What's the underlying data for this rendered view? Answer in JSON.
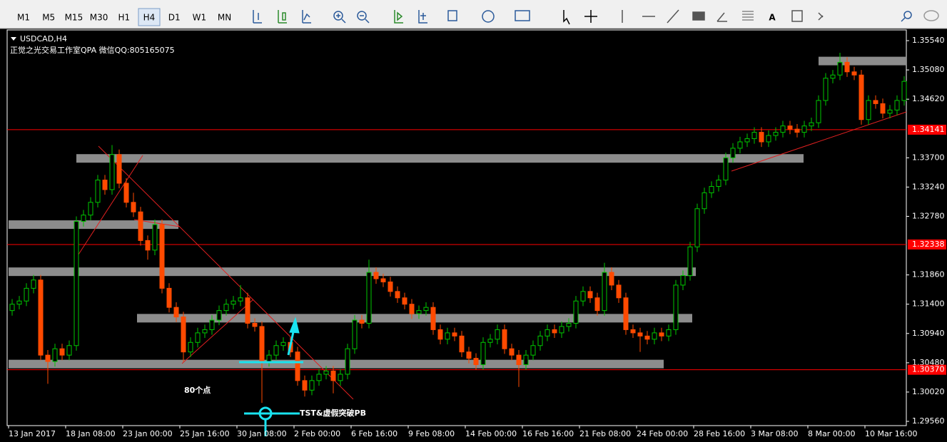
{
  "toolbar": {
    "timeframes": [
      "M1",
      "M5",
      "M15",
      "M30",
      "H1",
      "H4",
      "D1",
      "W1",
      "MN"
    ],
    "active": "H4",
    "text_tool": "A"
  },
  "chart_data": {
    "type": "candlestick",
    "title": "USDCAD,H4",
    "subtitle": "正觉之光交易工作室QPA 微信QQ:805165075",
    "bull_color": "#00c800",
    "bear_color": "#ff4a00",
    "ylim": [
      1.29493,
      1.35708
    ],
    "yticks": [
      {
        "value": 1.2956,
        "label": "1.29560"
      },
      {
        "value": 1.3002,
        "label": "1.30020"
      },
      {
        "value": 1.3048,
        "label": "1.30480"
      },
      {
        "value": 1.3094,
        "label": "1.30940"
      },
      {
        "value": 1.314,
        "label": "1.31400"
      },
      {
        "value": 1.3186,
        "label": "1.31860"
      },
      {
        "value": 1.3278,
        "label": "1.32780"
      },
      {
        "value": 1.3324,
        "label": "1.33240"
      },
      {
        "value": 1.337,
        "label": "1.33700"
      },
      {
        "value": 1.3462,
        "label": "1.34620"
      },
      {
        "value": 1.3508,
        "label": "1.35080"
      },
      {
        "value": 1.3554,
        "label": "1.35540"
      }
    ],
    "hlines": [
      1.34141,
      1.32338,
      {
        "value": 1.3037,
        "label": "1.30370"
      }
    ],
    "hline_color": "#ff0000",
    "zones": [
      1.3369,
      1.3265,
      1.3191,
      1.3118,
      1.3046,
      1.3522
    ],
    "zone_color": "#8c8c8c",
    "annotations": [
      "80个点",
      "TST&虚假突破PB"
    ],
    "annotation_color": "#19e3f0",
    "categories": [
      "13 Jan 2017",
      null,
      null,
      null,
      null,
      null,
      null,
      null,
      "18 Jan 08:00",
      null,
      null,
      null,
      null,
      null,
      null,
      null,
      "23 Jan 00:00",
      null,
      null,
      null,
      null,
      null,
      null,
      null,
      "25 Jan 16:00",
      null,
      null,
      null,
      null,
      null,
      null,
      null,
      "30 Jan 08:00",
      null,
      null,
      null,
      null,
      null,
      null,
      null,
      "2 Feb 00:00",
      null,
      null,
      null,
      null,
      null,
      null,
      null,
      "6 Feb 16:00",
      null,
      null,
      null,
      null,
      null,
      null,
      null,
      "9 Feb 08:00",
      null,
      null,
      null,
      null,
      null,
      null,
      null,
      "14 Feb 00:00",
      null,
      null,
      null,
      null,
      null,
      null,
      null,
      "16 Feb 16:00",
      null,
      null,
      null,
      null,
      null,
      null,
      null,
      "21 Feb 08:00",
      null,
      null,
      null,
      null,
      null,
      null,
      null,
      "24 Feb 00:00",
      null,
      null,
      null,
      null,
      null,
      null,
      null,
      "28 Feb 16:00",
      null,
      null,
      null,
      null,
      null,
      null,
      null,
      "3 Mar 08:00",
      null,
      null,
      null,
      null,
      null,
      null,
      null,
      "8 Mar 00:00",
      null,
      null,
      null,
      null,
      null,
      null,
      null,
      "10 Mar 16:00",
      null,
      null,
      null,
      null,
      null
    ],
    "candles": [
      [
        1.313,
        1.3148,
        1.3122,
        1.314
      ],
      [
        1.314,
        1.3153,
        1.3132,
        1.3145
      ],
      [
        1.3145,
        1.3173,
        1.3137,
        1.3165
      ],
      [
        1.3165,
        1.3186,
        1.3157,
        1.3178
      ],
      [
        1.3178,
        1.3186,
        1.3052,
        1.306
      ],
      [
        1.306,
        1.3068,
        1.3015,
        1.305
      ],
      [
        1.305,
        1.3078,
        1.3042,
        1.307
      ],
      [
        1.307,
        1.3078,
        1.3052,
        1.306
      ],
      [
        1.306,
        1.3083,
        1.3052,
        1.3075
      ],
      [
        1.3075,
        1.3278,
        1.3067,
        1.327
      ],
      [
        1.327,
        1.3288,
        1.3262,
        1.328
      ],
      [
        1.328,
        1.3308,
        1.3272,
        1.33
      ],
      [
        1.33,
        1.3343,
        1.3292,
        1.3335
      ],
      [
        1.3335,
        1.3343,
        1.3312,
        1.332
      ],
      [
        1.332,
        1.339,
        1.3312,
        1.3375
      ],
      [
        1.3375,
        1.3383,
        1.3322,
        1.333
      ],
      [
        1.333,
        1.3338,
        1.3292,
        1.33
      ],
      [
        1.33,
        1.3315,
        1.3277,
        1.3285
      ],
      [
        1.3285,
        1.3293,
        1.3232,
        1.324
      ],
      [
        1.324,
        1.3248,
        1.321,
        1.3225
      ],
      [
        1.3225,
        1.3273,
        1.3217,
        1.3265
      ],
      [
        1.3265,
        1.3273,
        1.3157,
        1.3165
      ],
      [
        1.3165,
        1.3173,
        1.3127,
        1.3135
      ],
      [
        1.3135,
        1.3143,
        1.3112,
        1.312
      ],
      [
        1.312,
        1.3128,
        1.305,
        1.3065
      ],
      [
        1.3065,
        1.3088,
        1.3057,
        1.308
      ],
      [
        1.308,
        1.3103,
        1.3072,
        1.3095
      ],
      [
        1.3095,
        1.3108,
        1.3087,
        1.31
      ],
      [
        1.31,
        1.3123,
        1.3092,
        1.3115
      ],
      [
        1.3115,
        1.3138,
        1.3107,
        1.313
      ],
      [
        1.313,
        1.3148,
        1.3122,
        1.314
      ],
      [
        1.314,
        1.3153,
        1.3132,
        1.3145
      ],
      [
        1.3145,
        1.317,
        1.3137,
        1.315
      ],
      [
        1.315,
        1.3158,
        1.3102,
        1.311
      ],
      [
        1.311,
        1.3118,
        1.3097,
        1.3105
      ],
      [
        1.3105,
        1.3113,
        1.2985,
        1.305
      ],
      [
        1.305,
        1.3068,
        1.3042,
        1.306
      ],
      [
        1.306,
        1.3083,
        1.3052,
        1.3075
      ],
      [
        1.3075,
        1.3088,
        1.3067,
        1.308
      ],
      [
        1.308,
        1.3088,
        1.3057,
        1.3065
      ],
      [
        1.3065,
        1.3073,
        1.3012,
        1.302
      ],
      [
        1.302,
        1.3028,
        1.2995,
        1.3005
      ],
      [
        1.3005,
        1.3028,
        1.2997,
        1.302
      ],
      [
        1.302,
        1.3038,
        1.3012,
        1.303
      ],
      [
        1.303,
        1.3043,
        1.3022,
        1.3035
      ],
      [
        1.3035,
        1.3043,
        1.3,
        1.302
      ],
      [
        1.302,
        1.3038,
        1.3012,
        1.303
      ],
      [
        1.303,
        1.3078,
        1.3022,
        1.307
      ],
      [
        1.307,
        1.3123,
        1.3062,
        1.3115
      ],
      [
        1.3115,
        1.3123,
        1.3102,
        1.311
      ],
      [
        1.311,
        1.321,
        1.3102,
        1.319
      ],
      [
        1.319,
        1.3198,
        1.3172,
        1.318
      ],
      [
        1.318,
        1.3188,
        1.3167,
        1.3175
      ],
      [
        1.3175,
        1.3183,
        1.3152,
        1.316
      ],
      [
        1.316,
        1.3168,
        1.3142,
        1.315
      ],
      [
        1.315,
        1.3158,
        1.3132,
        1.314
      ],
      [
        1.314,
        1.3148,
        1.3117,
        1.3125
      ],
      [
        1.3125,
        1.3138,
        1.3117,
        1.313
      ],
      [
        1.313,
        1.3143,
        1.3122,
        1.3135
      ],
      [
        1.3135,
        1.3143,
        1.3092,
        1.31
      ],
      [
        1.31,
        1.3108,
        1.3077,
        1.3085
      ],
      [
        1.3085,
        1.3103,
        1.3077,
        1.3095
      ],
      [
        1.3095,
        1.3103,
        1.3082,
        1.309
      ],
      [
        1.309,
        1.3098,
        1.3057,
        1.3065
      ],
      [
        1.3065,
        1.3073,
        1.3047,
        1.3055
      ],
      [
        1.3055,
        1.3063,
        1.3037,
        1.3045
      ],
      [
        1.3045,
        1.3088,
        1.3037,
        1.308
      ],
      [
        1.308,
        1.3093,
        1.3072,
        1.3085
      ],
      [
        1.3085,
        1.3108,
        1.3077,
        1.31
      ],
      [
        1.31,
        1.3108,
        1.3062,
        1.307
      ],
      [
        1.307,
        1.3078,
        1.3052,
        1.306
      ],
      [
        1.306,
        1.3068,
        1.301,
        1.3045
      ],
      [
        1.3045,
        1.3068,
        1.3037,
        1.306
      ],
      [
        1.306,
        1.3083,
        1.3052,
        1.3075
      ],
      [
        1.3075,
        1.3098,
        1.3067,
        1.309
      ],
      [
        1.309,
        1.3108,
        1.3082,
        1.31
      ],
      [
        1.31,
        1.3108,
        1.3087,
        1.3095
      ],
      [
        1.3095,
        1.3113,
        1.3087,
        1.3105
      ],
      [
        1.3105,
        1.3118,
        1.3097,
        1.311
      ],
      [
        1.311,
        1.3153,
        1.3102,
        1.3145
      ],
      [
        1.3145,
        1.3168,
        1.3137,
        1.316
      ],
      [
        1.316,
        1.3168,
        1.3142,
        1.315
      ],
      [
        1.315,
        1.3158,
        1.3122,
        1.313
      ],
      [
        1.313,
        1.3205,
        1.3122,
        1.319
      ],
      [
        1.319,
        1.3198,
        1.3162,
        1.317
      ],
      [
        1.317,
        1.3178,
        1.3142,
        1.315
      ],
      [
        1.315,
        1.3158,
        1.3092,
        1.31
      ],
      [
        1.31,
        1.3108,
        1.3087,
        1.3095
      ],
      [
        1.3095,
        1.3103,
        1.3065,
        1.309
      ],
      [
        1.309,
        1.3098,
        1.3077,
        1.3085
      ],
      [
        1.3085,
        1.3103,
        1.3077,
        1.3095
      ],
      [
        1.3095,
        1.3103,
        1.3082,
        1.309
      ],
      [
        1.309,
        1.3108,
        1.3082,
        1.31
      ],
      [
        1.31,
        1.3178,
        1.3092,
        1.317
      ],
      [
        1.317,
        1.3193,
        1.3162,
        1.3185
      ],
      [
        1.3185,
        1.3238,
        1.3177,
        1.323
      ],
      [
        1.323,
        1.3298,
        1.3222,
        1.329
      ],
      [
        1.329,
        1.3323,
        1.3282,
        1.3315
      ],
      [
        1.3315,
        1.3333,
        1.3307,
        1.3325
      ],
      [
        1.3325,
        1.3343,
        1.3317,
        1.3335
      ],
      [
        1.3335,
        1.3378,
        1.3327,
        1.337
      ],
      [
        1.337,
        1.3393,
        1.3362,
        1.3385
      ],
      [
        1.3385,
        1.3403,
        1.3377,
        1.3395
      ],
      [
        1.3395,
        1.3408,
        1.3387,
        1.34
      ],
      [
        1.34,
        1.3418,
        1.3392,
        1.341
      ],
      [
        1.341,
        1.3418,
        1.3387,
        1.3395
      ],
      [
        1.3395,
        1.3413,
        1.3387,
        1.3405
      ],
      [
        1.3405,
        1.3418,
        1.3397,
        1.341
      ],
      [
        1.341,
        1.3428,
        1.3402,
        1.342
      ],
      [
        1.342,
        1.3428,
        1.3407,
        1.3415
      ],
      [
        1.3415,
        1.3423,
        1.3402,
        1.341
      ],
      [
        1.341,
        1.3428,
        1.3402,
        1.342
      ],
      [
        1.342,
        1.3433,
        1.3412,
        1.3425
      ],
      [
        1.3425,
        1.3468,
        1.3417,
        1.346
      ],
      [
        1.346,
        1.3503,
        1.3452,
        1.3495
      ],
      [
        1.3495,
        1.3508,
        1.3487,
        1.35
      ],
      [
        1.35,
        1.3535,
        1.3492,
        1.352
      ],
      [
        1.352,
        1.3528,
        1.3497,
        1.3505
      ],
      [
        1.3505,
        1.3513,
        1.3492,
        1.35
      ],
      [
        1.35,
        1.3508,
        1.3422,
        1.343
      ],
      [
        1.343,
        1.3468,
        1.3422,
        1.346
      ],
      [
        1.346,
        1.3468,
        1.3447,
        1.3455
      ],
      [
        1.3455,
        1.3463,
        1.3432,
        1.344
      ],
      [
        1.344,
        1.3453,
        1.3432,
        1.3445
      ],
      [
        1.3445,
        1.3468,
        1.3437,
        1.346
      ],
      [
        1.346,
        1.3498,
        1.3452,
        1.349
      ]
    ]
  }
}
